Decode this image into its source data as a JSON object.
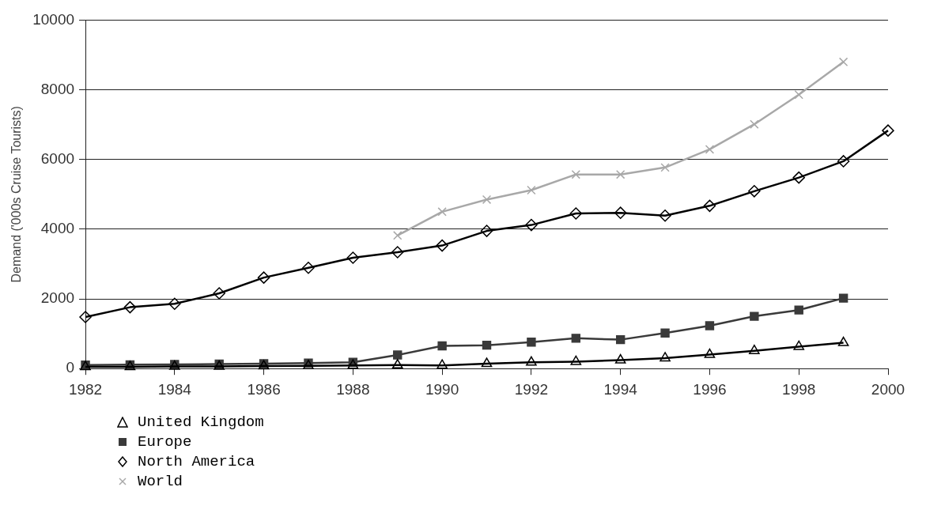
{
  "chart_data": {
    "type": "line",
    "ylabel": "Demand ('000s Cruise Tourists)",
    "x": [
      1982,
      1983,
      1984,
      1985,
      1986,
      1987,
      1988,
      1989,
      1990,
      1991,
      1992,
      1993,
      1994,
      1995,
      1996,
      1997,
      1998,
      1999,
      2000
    ],
    "series": [
      {
        "name": "United Kingdom",
        "color": "#000000",
        "marker": "triangle",
        "values": [
          50,
          50,
          60,
          60,
          70,
          80,
          90,
          100,
          90,
          140,
          180,
          200,
          240,
          300,
          400,
          510,
          630,
          740,
          null
        ]
      },
      {
        "name": "Europe",
        "color": "#3a3a3a",
        "marker": "square",
        "values": [
          100,
          110,
          120,
          130,
          140,
          160,
          180,
          390,
          650,
          670,
          760,
          870,
          830,
          1020,
          1230,
          1500,
          1680,
          2020,
          null
        ]
      },
      {
        "name": "North America",
        "color": "#000000",
        "marker": "diamond",
        "values": [
          1480,
          1760,
          1860,
          2160,
          2610,
          2890,
          3180,
          3340,
          3530,
          3950,
          4120,
          4450,
          4470,
          4390,
          4670,
          5090,
          5480,
          5950,
          6830
        ]
      },
      {
        "name": "World",
        "color": "#a8a8a8",
        "marker": "cross",
        "values": [
          null,
          null,
          null,
          null,
          null,
          null,
          null,
          3820,
          4500,
          4850,
          5120,
          5570,
          5570,
          5770,
          6290,
          7010,
          7860,
          8800,
          null
        ]
      }
    ],
    "xlim": [
      1982,
      2000
    ],
    "xticks": [
      1982,
      1984,
      1986,
      1988,
      1990,
      1992,
      1994,
      1996,
      1998,
      2000
    ],
    "ylim": [
      0,
      10000
    ],
    "yticks": [
      0,
      2000,
      4000,
      6000,
      8000,
      10000
    ],
    "grid": "y",
    "legend": "bottom left",
    "line_style": "solid"
  }
}
